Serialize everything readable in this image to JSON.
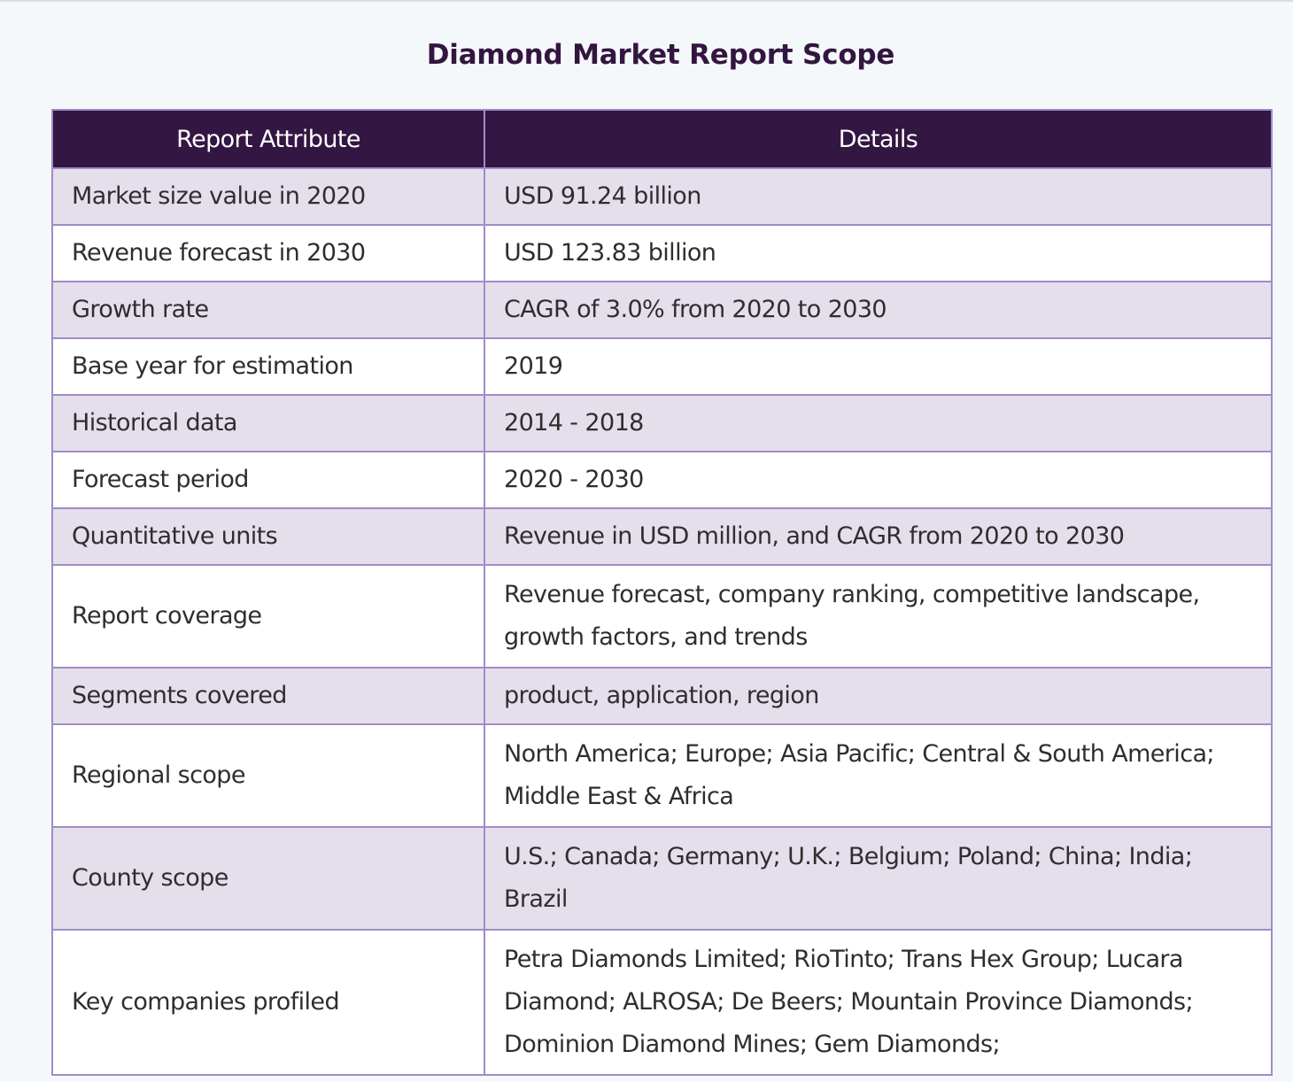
{
  "title": "Diamond Market Report Scope",
  "table": {
    "headers": [
      "Report Attribute",
      "Details"
    ],
    "rows": [
      {
        "attribute": "Market size value in 2020",
        "details": "USD 91.24 billion"
      },
      {
        "attribute": "Revenue forecast in 2030",
        "details": "USD 123.83 billion"
      },
      {
        "attribute": "Growth rate",
        "details": "CAGR of 3.0% from 2020 to 2030"
      },
      {
        "attribute": "Base year for estimation",
        "details": "2019"
      },
      {
        "attribute": "Historical data",
        "details": "2014 - 2018"
      },
      {
        "attribute": "Forecast period",
        "details": "2020 - 2030"
      },
      {
        "attribute": "Quantitative units",
        "details": "Revenue in USD million, and CAGR from 2020 to 2030"
      },
      {
        "attribute": "Report coverage",
        "details": "Revenue forecast, company ranking, competitive landscape, growth factors, and trends"
      },
      {
        "attribute": "Segments covered",
        "details": "product, application, region"
      },
      {
        "attribute": "Regional scope",
        "details": "North America; Europe; Asia Pacific; Central & South America; Middle East & Africa"
      },
      {
        "attribute": "County scope",
        "details": "U.S.; Canada; Germany; U.K.; Belgium; Poland; China; India; Brazil"
      },
      {
        "attribute": "Key companies profiled",
        "details": "Petra Diamonds Limited; RioTinto; Trans Hex Group; Lucara Diamond; ALROSA; De Beers; Mountain Province Diamonds; Dominion Diamond Mines; Gem Diamonds;"
      }
    ]
  }
}
